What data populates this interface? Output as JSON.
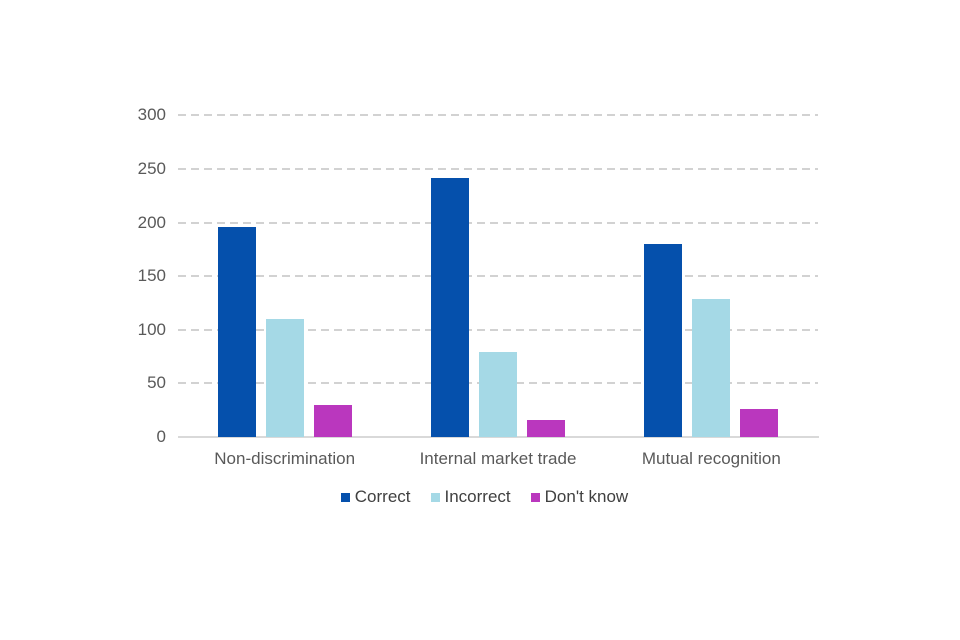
{
  "chart_data": {
    "type": "bar",
    "title": "",
    "xlabel": "",
    "ylabel": "",
    "categories": [
      "Non-discrimination",
      "Internal market trade",
      "Mutual recognition"
    ],
    "series": [
      {
        "name": "Correct",
        "color": "#0550ac",
        "values": [
          196,
          242,
          180
        ]
      },
      {
        "name": "Incorrect",
        "color": "#a5d9e6",
        "values": [
          110,
          79,
          129
        ]
      },
      {
        "name": "Don't know",
        "color": "#ba37be",
        "values": [
          30,
          16,
          26
        ]
      }
    ],
    "ylim": [
      0,
      300
    ],
    "yticks": [
      0,
      50,
      100,
      150,
      200,
      250,
      300
    ],
    "ytick_labels": [
      "0",
      "50",
      "100",
      "150",
      "200",
      "250",
      "300"
    ],
    "grid": "horizontal-dashed",
    "legend_position": "bottom",
    "colors": {
      "gridline": "#d2d2d2",
      "axis_line": "#d9d9d9",
      "tick_text": "#595959",
      "category_text": "#595959",
      "legend_text": "#404040",
      "background": "#ffffff"
    }
  }
}
